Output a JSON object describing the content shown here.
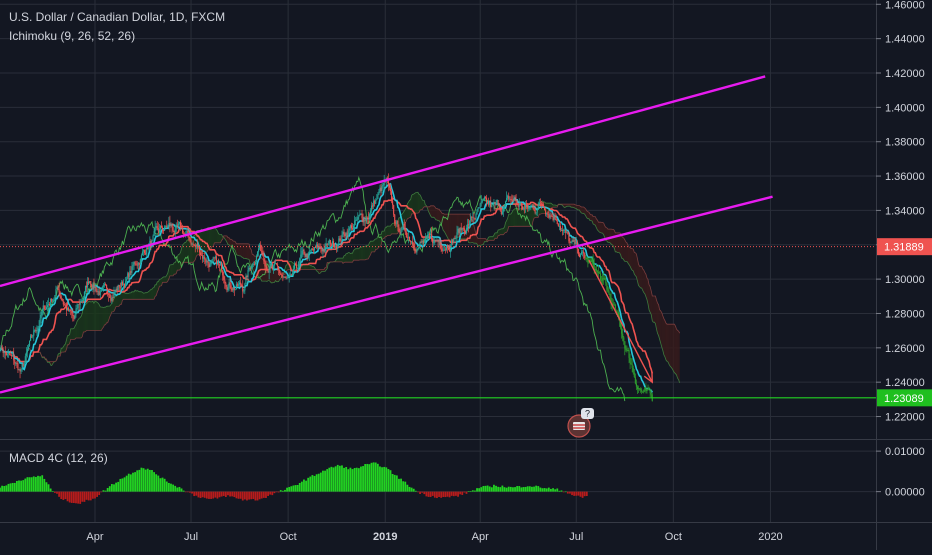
{
  "header": {
    "title": "U.S. Dollar / Canadian Dollar, 1D, FXCM",
    "indicator": "Ichimoku (9, 26, 52, 26)",
    "macd_label": "MACD 4C (12, 26)"
  },
  "colors": {
    "background": "#131722",
    "grid": "#2a2e39",
    "channel": "#e81bf0",
    "up_candle": "#26a69a",
    "down_candle": "#ef5350",
    "recent_candles": "#2e9e2e",
    "tenkan": "#26c6da",
    "kijun": "#ef5350",
    "chikou": "#4caf50",
    "kumo_bull": "#1b3a1b",
    "kumo_bear": "#3a1b1b",
    "red_level": "#ef5350",
    "green_level": "#22d422",
    "arrow": "#ef5350",
    "macd_pos": "#22d422",
    "macd_neg": "#b71c1c"
  },
  "price_axis": {
    "ticks": [
      "1.46000",
      "1.44000",
      "1.42000",
      "1.40000",
      "1.38000",
      "1.36000",
      "1.34000",
      "1.32000",
      "1.30000",
      "1.28000",
      "1.26000",
      "1.24000",
      "1.22000"
    ],
    "tick_values": [
      1.46,
      1.44,
      1.42,
      1.4,
      1.38,
      1.36,
      1.34,
      1.32,
      1.3,
      1.28,
      1.26,
      1.24,
      1.22
    ],
    "range": [
      1.2075,
      1.4625
    ]
  },
  "macd_axis": {
    "ticks": [
      "0.01000",
      "0.00000"
    ],
    "tick_values": [
      0.01,
      0.0
    ],
    "range": [
      -0.0075,
      0.0125
    ]
  },
  "time_axis": {
    "labels": [
      "Apr",
      "Jul",
      "Oct",
      "2019",
      "Apr",
      "Jul",
      "Oct",
      "2020"
    ],
    "bold": [
      false,
      false,
      false,
      true,
      false,
      false,
      false,
      false
    ],
    "tick_days": [
      90,
      181,
      273,
      365,
      455,
      546,
      638,
      730
    ],
    "range_days": [
      0,
      830
    ]
  },
  "levels": {
    "red_price": 1.31889,
    "red_label": "1.31889",
    "green_price": 1.23089,
    "green_label": "1.23089"
  },
  "chart_data": {
    "type": "candlestick",
    "title": "U.S. Dollar / Canadian Dollar, 1D, FXCM",
    "x_unit": "days since 2018-01-01",
    "y_unit": "USD/CAD",
    "ylim": [
      1.2075,
      1.4625
    ],
    "xlim": [
      0,
      830
    ],
    "price_path": [
      [
        0,
        1.262
      ],
      [
        20,
        1.245
      ],
      [
        40,
        1.28
      ],
      [
        55,
        1.295
      ],
      [
        70,
        1.275
      ],
      [
        85,
        1.3
      ],
      [
        100,
        1.29
      ],
      [
        120,
        1.3
      ],
      [
        140,
        1.32
      ],
      [
        160,
        1.33
      ],
      [
        175,
        1.325
      ],
      [
        190,
        1.316
      ],
      [
        210,
        1.303
      ],
      [
        230,
        1.295
      ],
      [
        245,
        1.32
      ],
      [
        260,
        1.305
      ],
      [
        275,
        1.295
      ],
      [
        285,
        1.31
      ],
      [
        300,
        1.315
      ],
      [
        315,
        1.32
      ],
      [
        330,
        1.33
      ],
      [
        345,
        1.335
      ],
      [
        360,
        1.35
      ],
      [
        366,
        1.355
      ],
      [
        375,
        1.33
      ],
      [
        390,
        1.325
      ],
      [
        405,
        1.32
      ],
      [
        420,
        1.322
      ],
      [
        440,
        1.33
      ],
      [
        455,
        1.34
      ],
      [
        470,
        1.34
      ],
      [
        485,
        1.345
      ],
      [
        500,
        1.34
      ],
      [
        515,
        1.345
      ],
      [
        530,
        1.336
      ],
      [
        540,
        1.32
      ],
      [
        548,
        1.315
      ],
      [
        556,
        1.31
      ],
      [
        564,
        1.305
      ],
      [
        572,
        1.296
      ],
      [
        580,
        1.285
      ],
      [
        588,
        1.27
      ],
      [
        596,
        1.255
      ],
      [
        604,
        1.24
      ],
      [
        612,
        1.232
      ],
      [
        618,
        1.228
      ]
    ],
    "channel_upper": [
      [
        0,
        1.296
      ],
      [
        725,
        1.418
      ]
    ],
    "channel_lower": [
      [
        0,
        1.234
      ],
      [
        732,
        1.348
      ]
    ],
    "arrow": {
      "from": [
        558,
        1.311
      ],
      "to": [
        618,
        1.24
      ]
    },
    "macd": {
      "label": "MACD 4C (12, 26)",
      "points": [
        [
          0,
          0.001
        ],
        [
          20,
          0.003
        ],
        [
          40,
          0.004
        ],
        [
          50,
          0.0
        ],
        [
          60,
          -0.002
        ],
        [
          75,
          -0.003
        ],
        [
          90,
          -0.0015
        ],
        [
          105,
          0.0015
        ],
        [
          120,
          0.004
        ],
        [
          135,
          0.006
        ],
        [
          145,
          0.005
        ],
        [
          155,
          0.003
        ],
        [
          170,
          0.001
        ],
        [
          185,
          -0.001
        ],
        [
          200,
          -0.002
        ],
        [
          215,
          -0.001
        ],
        [
          230,
          -0.002
        ],
        [
          245,
          -0.002
        ],
        [
          260,
          -0.0005
        ],
        [
          275,
          0.001
        ],
        [
          290,
          0.003
        ],
        [
          305,
          0.005
        ],
        [
          320,
          0.0065
        ],
        [
          335,
          0.0055
        ],
        [
          345,
          0.0065
        ],
        [
          355,
          0.007
        ],
        [
          365,
          0.006
        ],
        [
          375,
          0.004
        ],
        [
          385,
          0.002
        ],
        [
          395,
          0.0
        ],
        [
          405,
          -0.001
        ],
        [
          420,
          -0.0015
        ],
        [
          435,
          -0.001
        ],
        [
          445,
          0.0
        ],
        [
          455,
          0.001
        ],
        [
          470,
          0.0015
        ],
        [
          485,
          0.001
        ],
        [
          500,
          0.0015
        ],
        [
          515,
          0.001
        ],
        [
          528,
          0.0005
        ],
        [
          536,
          0.0
        ],
        [
          544,
          -0.001
        ],
        [
          552,
          -0.0015
        ],
        [
          556,
          -0.001
        ]
      ]
    }
  }
}
